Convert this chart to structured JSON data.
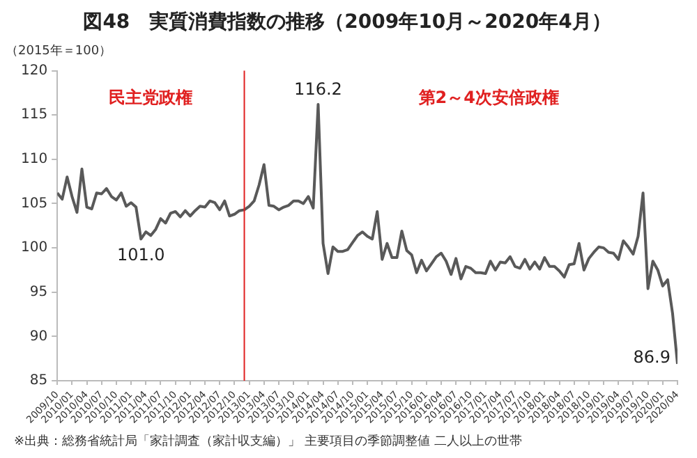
{
  "chart_data": {
    "type": "line",
    "title": "図48　実質消費指数の推移（2009年10月～2020年4月）",
    "ylabel": "（2015年＝100）",
    "annotations": [
      "民主党政権",
      "第2～4次安倍政権",
      "※出典：総務省統計局「家計調査（家計収支編）」 主要項目の季節調整値 二人以上の世帯"
    ],
    "x": [
      "2009-10",
      "2009-11",
      "2009-12",
      "2010-01",
      "2010-02",
      "2010-03",
      "2010-04",
      "2010-05",
      "2010-06",
      "2010-07",
      "2010-08",
      "2010-09",
      "2010-10",
      "2010-11",
      "2010-12",
      "2011-01",
      "2011-02",
      "2011-03",
      "2011-04",
      "2011-05",
      "2011-06",
      "2011-07",
      "2011-08",
      "2011-09",
      "2011-10",
      "2011-11",
      "2011-12",
      "2012-01",
      "2012-02",
      "2012-03",
      "2012-04",
      "2012-05",
      "2012-06",
      "2012-07",
      "2012-08",
      "2012-09",
      "2012-10",
      "2012-11",
      "2012-12",
      "2013-01",
      "2013-02",
      "2013-03",
      "2013-04",
      "2013-05",
      "2013-06",
      "2013-07",
      "2013-08",
      "2013-09",
      "2013-10",
      "2013-11",
      "2013-12",
      "2014-01",
      "2014-02",
      "2014-03",
      "2014-04",
      "2014-05",
      "2014-06",
      "2014-07",
      "2014-08",
      "2014-09",
      "2014-10",
      "2014-11",
      "2014-12",
      "2015-01",
      "2015-02",
      "2015-03",
      "2015-04",
      "2015-05",
      "2015-06",
      "2015-07",
      "2015-08",
      "2015-09",
      "2015-10",
      "2015-11",
      "2015-12",
      "2016-01",
      "2016-02",
      "2016-03",
      "2016-04",
      "2016-05",
      "2016-06",
      "2016-07",
      "2016-08",
      "2016-09",
      "2016-10",
      "2016-11",
      "2016-12",
      "2017-01",
      "2017-02",
      "2017-03",
      "2017-04",
      "2017-05",
      "2017-06",
      "2017-07",
      "2017-08",
      "2017-09",
      "2017-10",
      "2017-11",
      "2017-12",
      "2018-01",
      "2018-02",
      "2018-03",
      "2018-04",
      "2018-05",
      "2018-06",
      "2018-07",
      "2018-08",
      "2018-09",
      "2018-10",
      "2018-11",
      "2018-12",
      "2019-01",
      "2019-02",
      "2019-03",
      "2019-04",
      "2019-05",
      "2019-06",
      "2019-07",
      "2019-08",
      "2019-09",
      "2019-10",
      "2019-11",
      "2019-12",
      "2020-01",
      "2020-02",
      "2020-03",
      "2020-04"
    ],
    "series": [
      {
        "color": "#595959",
        "values": [
          106.2,
          105.5,
          108.0,
          105.8,
          104.0,
          108.9,
          104.6,
          104.4,
          106.2,
          106.1,
          106.7,
          105.8,
          105.4,
          106.2,
          104.7,
          105.1,
          104.6,
          101.0,
          101.8,
          101.4,
          102.1,
          103.3,
          102.8,
          103.9,
          104.1,
          103.5,
          104.2,
          103.6,
          104.2,
          104.7,
          104.6,
          105.3,
          105.1,
          104.3,
          105.3,
          103.6,
          103.8,
          104.2,
          104.3,
          104.7,
          105.3,
          107.1,
          109.4,
          104.8,
          104.7,
          104.3,
          104.6,
          104.8,
          105.3,
          105.3,
          105.0,
          105.8,
          104.5,
          116.2,
          100.5,
          97.1,
          100.1,
          99.6,
          99.6,
          99.8,
          100.6,
          101.4,
          101.8,
          101.3,
          101.0,
          104.1,
          98.7,
          100.5,
          98.9,
          98.9,
          101.9,
          99.7,
          99.2,
          97.2,
          98.6,
          97.4,
          98.2,
          99.0,
          99.4,
          98.5,
          97.0,
          98.8,
          96.5,
          97.9,
          97.7,
          97.2,
          97.2,
          97.1,
          98.5,
          97.5,
          98.4,
          98.3,
          99.0,
          97.9,
          97.7,
          98.7,
          97.6,
          98.4,
          97.6,
          98.9,
          97.9,
          97.9,
          97.4,
          96.7,
          98.1,
          98.2,
          100.5,
          97.5,
          98.8,
          99.5,
          100.1,
          100.0,
          99.5,
          99.4,
          98.7,
          100.8,
          100.1,
          99.3,
          101.3,
          106.2,
          95.4,
          98.5,
          97.5,
          95.7,
          96.4,
          92.6,
          86.9
        ],
        "value_labels": [
          null,
          null,
          null,
          null,
          null,
          null,
          null,
          null,
          null,
          null,
          null,
          null,
          null,
          null,
          null,
          null,
          null,
          "101.0",
          null,
          null,
          null,
          null,
          null,
          null,
          null,
          null,
          null,
          null,
          null,
          null,
          null,
          null,
          null,
          null,
          null,
          null,
          null,
          null,
          null,
          null,
          null,
          null,
          null,
          null,
          null,
          null,
          null,
          null,
          null,
          null,
          null,
          null,
          null,
          "116.2",
          null,
          null,
          null,
          null,
          null,
          null,
          null,
          null,
          null,
          null,
          null,
          null,
          null,
          null,
          null,
          null,
          null,
          null,
          null,
          null,
          null,
          null,
          null,
          null,
          null,
          null,
          null,
          null,
          null,
          null,
          null,
          null,
          null,
          null,
          null,
          null,
          null,
          null,
          null,
          null,
          null,
          null,
          null,
          null,
          null,
          null,
          null,
          null,
          null,
          null,
          null,
          null,
          null,
          null,
          null,
          null,
          null,
          null,
          null,
          null,
          null,
          null,
          null,
          null,
          null,
          null,
          null,
          null,
          null,
          null,
          null,
          null,
          "86.9"
        ]
      }
    ],
    "xlim": [
      "2009-10",
      "2020-04"
    ],
    "xticks": [
      {
        "value": "2009-10",
        "label": "2009/10"
      },
      {
        "value": "2010-01",
        "label": "2010/01"
      },
      {
        "value": "2010-04",
        "label": "2010/04"
      },
      {
        "value": "2010-07",
        "label": "2010/07"
      },
      {
        "value": "2010-10",
        "label": "2010/10"
      },
      {
        "value": "2011-01",
        "label": "2011/01"
      },
      {
        "value": "2011-04",
        "label": "2011/04"
      },
      {
        "value": "2011-07",
        "label": "2011/07"
      },
      {
        "value": "2011-10",
        "label": "2011/10"
      },
      {
        "value": "2012-01",
        "label": "2012/01"
      },
      {
        "value": "2012-04",
        "label": "2012/04"
      },
      {
        "value": "2012-07",
        "label": "2012/07"
      },
      {
        "value": "2012-10",
        "label": "2012/10"
      },
      {
        "value": "2013-01",
        "label": "2013/01"
      },
      {
        "value": "2013-04",
        "label": "2013/04"
      },
      {
        "value": "2013-07",
        "label": "2013/07"
      },
      {
        "value": "2013-10",
        "label": "2013/10"
      },
      {
        "value": "2014-01",
        "label": "2014/01"
      },
      {
        "value": "2014-04",
        "label": "2014/04"
      },
      {
        "value": "2014-07",
        "label": "2014/07"
      },
      {
        "value": "2014-10",
        "label": "2014/10"
      },
      {
        "value": "2015-01",
        "label": "2015/01"
      },
      {
        "value": "2015-04",
        "label": "2015/04"
      },
      {
        "value": "2015-07",
        "label": "2015/07"
      },
      {
        "value": "2015-10",
        "label": "2015/10"
      },
      {
        "value": "2016-01",
        "label": "2016/01"
      },
      {
        "value": "2016-04",
        "label": "2016/04"
      },
      {
        "value": "2016-07",
        "label": "2016/07"
      },
      {
        "value": "2016-10",
        "label": "2016/10"
      },
      {
        "value": "2017-01",
        "label": "2017/01"
      },
      {
        "value": "2017-04",
        "label": "2017/04"
      },
      {
        "value": "2017-07",
        "label": "2017/07"
      },
      {
        "value": "2017-10",
        "label": "2017/10"
      },
      {
        "value": "2018-01",
        "label": "2018/01"
      },
      {
        "value": "2018-04",
        "label": "2018/04"
      },
      {
        "value": "2018-07",
        "label": "2018/07"
      },
      {
        "value": "2018-10",
        "label": "2018/10"
      },
      {
        "value": "2019-01",
        "label": "2019/01"
      },
      {
        "value": "2019-04",
        "label": "2019/04"
      },
      {
        "value": "2019-07",
        "label": "2019/07"
      },
      {
        "value": "2019-10",
        "label": "2019/10"
      },
      {
        "value": "2020-01",
        "label": "2020/01"
      },
      {
        "value": "2020-04",
        "label": "2020/04"
      }
    ],
    "ylim": [
      85,
      120
    ],
    "yticks": [
      85,
      90,
      95,
      100,
      105,
      110,
      115,
      120
    ],
    "ref_lines": [
      {
        "axis": "x",
        "value": "2012-12",
        "color": "#e02020"
      }
    ],
    "grid": false,
    "legend": false,
    "marker": "none",
    "line_style": "solid"
  }
}
